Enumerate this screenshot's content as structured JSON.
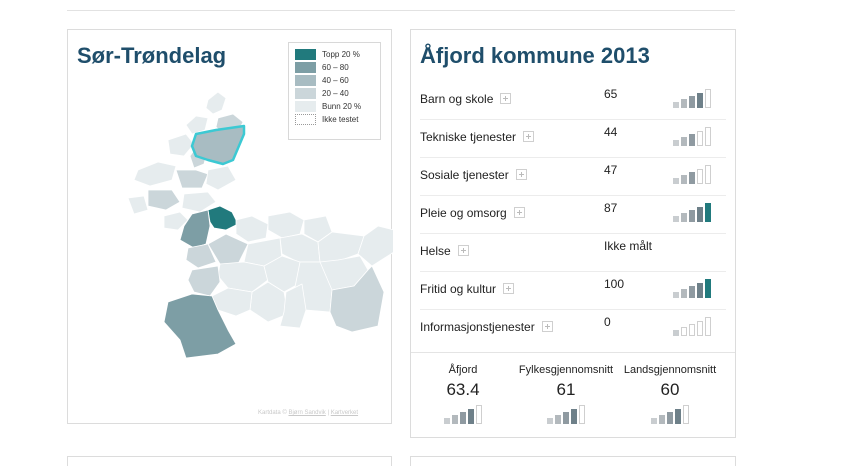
{
  "map_panel": {
    "title": "Sør-Trøndelag",
    "legend": [
      {
        "label": "Topp 20 %",
        "color": "#217a7d"
      },
      {
        "label": "60 – 80",
        "color": "#7d9ea5"
      },
      {
        "label": "40 – 60",
        "color": "#a8bcc2"
      },
      {
        "label": "20 – 40",
        "color": "#cbd6da"
      },
      {
        "label": "Bunn 20 %",
        "color": "#e6ecee"
      },
      {
        "label": "Ikke testet",
        "color": "#ffffff"
      }
    ],
    "selected_highlight_color": "#3cc9d3",
    "credit": {
      "prefix": "Kartdata ©",
      "link1": "Bjørn Sandvik",
      "separator": "|",
      "link2": "Kartverket"
    }
  },
  "stats_panel": {
    "title": "Åfjord kommune 2013",
    "rows": [
      {
        "label": "Barn og skole",
        "value": "65",
        "level": 4
      },
      {
        "label": "Tekniske tjenester",
        "value": "44",
        "level": 3
      },
      {
        "label": "Sosiale tjenester",
        "value": "47",
        "level": 3
      },
      {
        "label": "Pleie og omsorg",
        "value": "87",
        "level": 5
      },
      {
        "label": "Helse",
        "value": "Ikke målt",
        "level": 0
      },
      {
        "label": "Fritid og kultur",
        "value": "100",
        "level": 5
      },
      {
        "label": "Informasjonstjenester",
        "value": "0",
        "level": 1
      }
    ],
    "summary": [
      {
        "name": "Åfjord",
        "value": "63.4",
        "level": 4
      },
      {
        "name": "Fylkesgjennomsnitt",
        "value": "61",
        "level": 4
      },
      {
        "name": "Landsgjennomsnitt",
        "value": "60",
        "level": 4
      }
    ]
  },
  "bar_colors": {
    "active": [
      "#c9cdd0",
      "#b3b9bd",
      "#8f9aa1",
      "#6e8089",
      "#217a7d"
    ],
    "inactive_border": "#cfcfcf"
  }
}
